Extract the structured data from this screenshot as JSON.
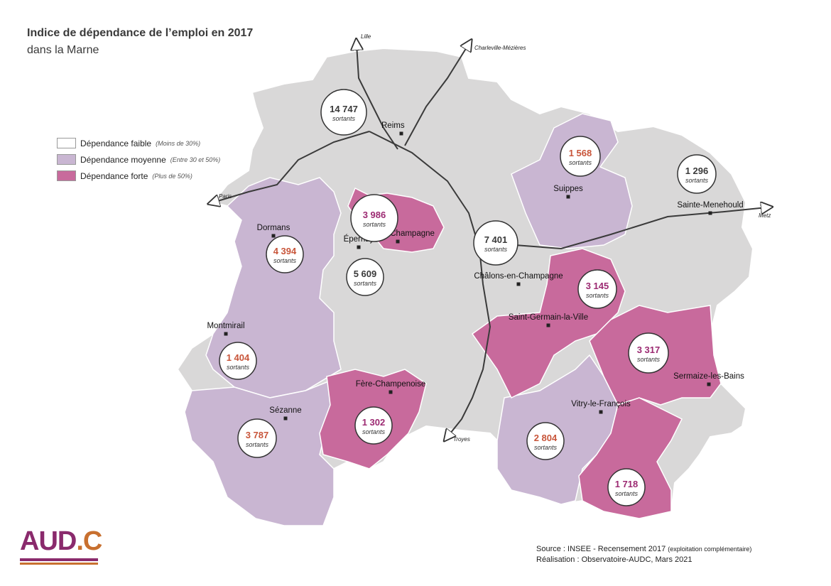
{
  "header": {
    "title": "Indice de dépendance de l’emploi en 2017",
    "subtitle": "dans la Marne"
  },
  "legend": {
    "items": [
      {
        "label": "Dépendance faible",
        "note": "(Moins de 30%)",
        "color": "#ffffff"
      },
      {
        "label": "Dépendance moyenne",
        "note": "(Entre 30 et 50%)",
        "color": "#c9b6d2"
      },
      {
        "label": "Dépendance forte",
        "note": "(Plus de 50%)",
        "color": "#c86a9c"
      }
    ]
  },
  "colors": {
    "faible": "#d9d8d8",
    "moyenne": "#c9b6d2",
    "forte": "#c86a9c",
    "value_moyenne": "#c8553a",
    "value_forte": "#9c2a72",
    "value_faible": "#3a3a3a"
  },
  "directions": [
    {
      "label": "Lille"
    },
    {
      "label": "Charleville-Mézières"
    },
    {
      "label": "Paris"
    },
    {
      "label": "Metz"
    },
    {
      "label": "Troyes"
    }
  ],
  "towns": [
    {
      "name": "Reims"
    },
    {
      "name": "Suippes"
    },
    {
      "name": "Sainte-Menehould"
    },
    {
      "name": "Dormans"
    },
    {
      "name": "Épernay"
    },
    {
      "name": "Aÿ-Champagne"
    },
    {
      "name": "Châlons-en-Champagne"
    },
    {
      "name": "Saint-Germain-la-Ville"
    },
    {
      "name": "Montmirail"
    },
    {
      "name": "Fère-Champenoise"
    },
    {
      "name": "Sermaize-les-Bains"
    },
    {
      "name": "Sézanne"
    },
    {
      "name": "Vitry-le-François"
    }
  ],
  "bubbles": [
    {
      "value": "14 747",
      "unit": "sortants",
      "level": "faible"
    },
    {
      "value": "1 568",
      "unit": "sortants",
      "level": "moyenne"
    },
    {
      "value": "1 296",
      "unit": "sortants",
      "level": "faible"
    },
    {
      "value": "3 986",
      "unit": "sortants",
      "level": "forte"
    },
    {
      "value": "7 401",
      "unit": "sortants",
      "level": "faible"
    },
    {
      "value": "4 394",
      "unit": "sortants",
      "level": "moyenne"
    },
    {
      "value": "5 609",
      "unit": "sortants",
      "level": "faible"
    },
    {
      "value": "3 145",
      "unit": "sortants",
      "level": "forte"
    },
    {
      "value": "1 404",
      "unit": "sortants",
      "level": "moyenne"
    },
    {
      "value": "3 317",
      "unit": "sortants",
      "level": "forte"
    },
    {
      "value": "1 302",
      "unit": "sortants",
      "level": "forte"
    },
    {
      "value": "3 787",
      "unit": "sortants",
      "level": "moyenne"
    },
    {
      "value": "2 804",
      "unit": "sortants",
      "level": "moyenne"
    },
    {
      "value": "1 718",
      "unit": "sortants",
      "level": "forte"
    }
  ],
  "source": {
    "line1": "Source : INSEE - Recensement 2017",
    "line1_note": "(exploitation complémentaire)",
    "line2": "Réalisation : Observatoire-AUDC, Mars 2021"
  },
  "logo": {
    "text_main": "AUD",
    "text_dot": ".C"
  }
}
